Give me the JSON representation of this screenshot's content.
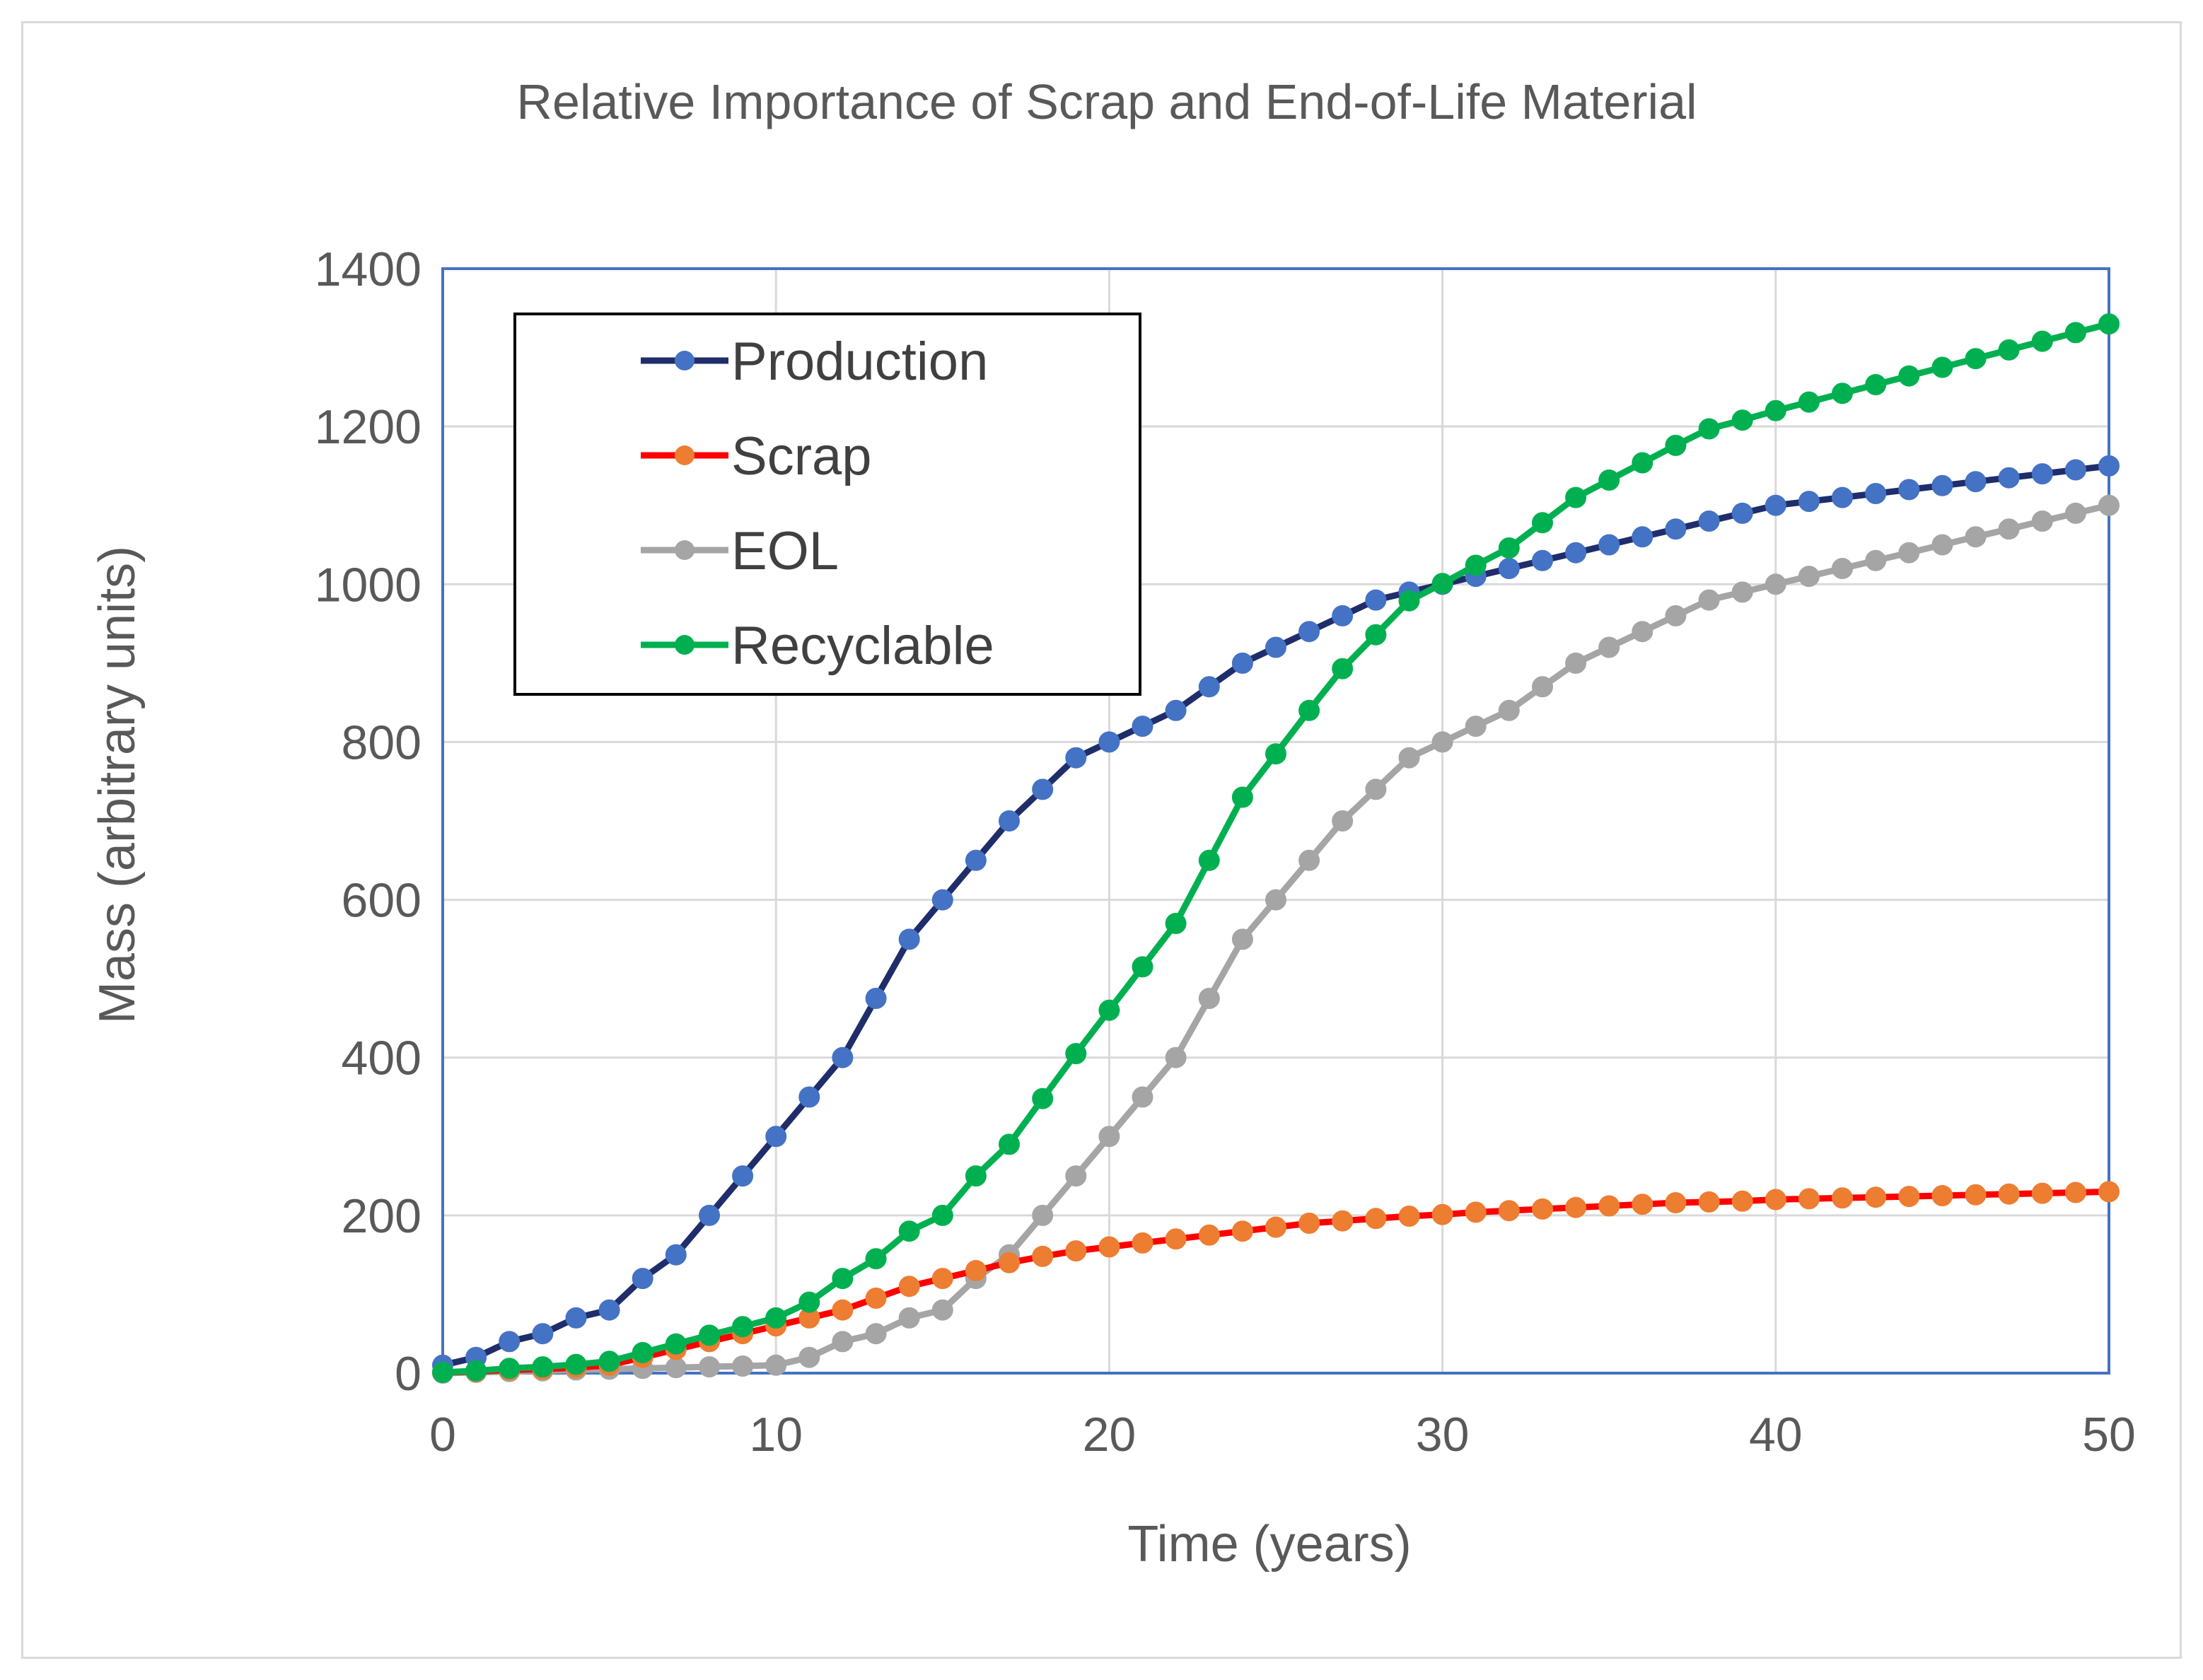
{
  "chart_data": {
    "type": "line",
    "title": "Relative Importance of Scrap and End-of-Life Material",
    "xlabel": "Time (years)",
    "ylabel": "Mass (arbitrary units)",
    "xlim": [
      0,
      50
    ],
    "ylim": [
      0,
      1400
    ],
    "xticks": [
      "0",
      "10",
      "20",
      "30",
      "40",
      "50"
    ],
    "yticks": [
      "0",
      "200",
      "400",
      "600",
      "800",
      "1000",
      "1200",
      "1400"
    ],
    "grid": true,
    "legend_position": "top-left",
    "x": [
      0,
      1,
      2,
      3,
      4,
      5,
      6,
      7,
      8,
      9,
      10,
      11,
      12,
      13,
      14,
      15,
      16,
      17,
      18,
      19,
      20,
      21,
      22,
      23,
      24,
      25,
      26,
      27,
      28,
      29,
      30,
      31,
      32,
      33,
      34,
      35,
      36,
      37,
      38,
      39,
      40,
      41,
      42,
      43,
      44,
      45,
      46,
      47,
      48,
      49,
      50
    ],
    "series": [
      {
        "name": "Production",
        "line_color": "#1f2d6b",
        "marker_color": "#4472c4",
        "values": [
          10,
          20,
          40,
          50,
          70,
          80,
          120,
          150,
          200,
          250,
          300,
          350,
          400,
          475,
          550,
          600,
          650,
          700,
          740,
          780,
          800,
          820,
          840,
          870,
          900,
          920,
          940,
          960,
          980,
          990,
          1000,
          1010,
          1020,
          1030,
          1040,
          1050,
          1060,
          1070,
          1080,
          1090,
          1100,
          1105,
          1110,
          1115,
          1120,
          1125,
          1130,
          1135,
          1140,
          1145,
          1150
        ]
      },
      {
        "name": "Scrap",
        "line_color": "#ff0000",
        "marker_color": "#ed7d31",
        "values": [
          1,
          2,
          4,
          5,
          7,
          10,
          20,
          30,
          40,
          50,
          60,
          70,
          80,
          95,
          110,
          120,
          130,
          140,
          148,
          155,
          160,
          165,
          170,
          175,
          180,
          185,
          190,
          193,
          196,
          199,
          201,
          204,
          206,
          208,
          210,
          212,
          214,
          216,
          217,
          218,
          220,
          221,
          222,
          223,
          224,
          225,
          226,
          227,
          228,
          229,
          230
        ]
      },
      {
        "name": "EOL",
        "line_color": "#a5a5a5",
        "marker_color": "#a5a5a5",
        "values": [
          0,
          1,
          2,
          3,
          4,
          5,
          6,
          7,
          8,
          9,
          10,
          20,
          40,
          50,
          70,
          80,
          120,
          150,
          200,
          250,
          300,
          350,
          400,
          475,
          550,
          600,
          650,
          700,
          740,
          780,
          800,
          820,
          840,
          870,
          900,
          920,
          940,
          960,
          980,
          990,
          1000,
          1010,
          1020,
          1030,
          1040,
          1050,
          1060,
          1070,
          1080,
          1090,
          1100
        ]
      },
      {
        "name": "Recyclable",
        "line_color": "#00b050",
        "marker_color": "#00b050",
        "values": [
          1,
          3,
          6,
          8,
          11,
          15,
          26,
          37,
          48,
          59,
          70,
          90,
          120,
          145,
          180,
          200,
          250,
          290,
          348,
          405,
          460,
          515,
          570,
          650,
          730,
          785,
          840,
          893,
          936,
          979,
          1001,
          1024,
          1046,
          1078,
          1110,
          1132,
          1154,
          1176,
          1197,
          1208,
          1220,
          1231,
          1242,
          1253,
          1264,
          1275,
          1286,
          1297,
          1308,
          1319,
          1330
        ]
      }
    ]
  }
}
